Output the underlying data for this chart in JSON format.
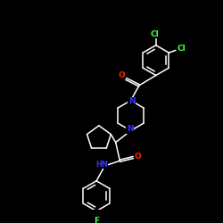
{
  "background": "#000000",
  "bond_color": "#ffffff",
  "atom_colors": {
    "N": "#3333ff",
    "O": "#ff2200",
    "Cl": "#44ff44",
    "F": "#44ff44",
    "H": "#ffffff",
    "C": "#ffffff"
  },
  "font_size": 6.0,
  "lw": 1.1
}
